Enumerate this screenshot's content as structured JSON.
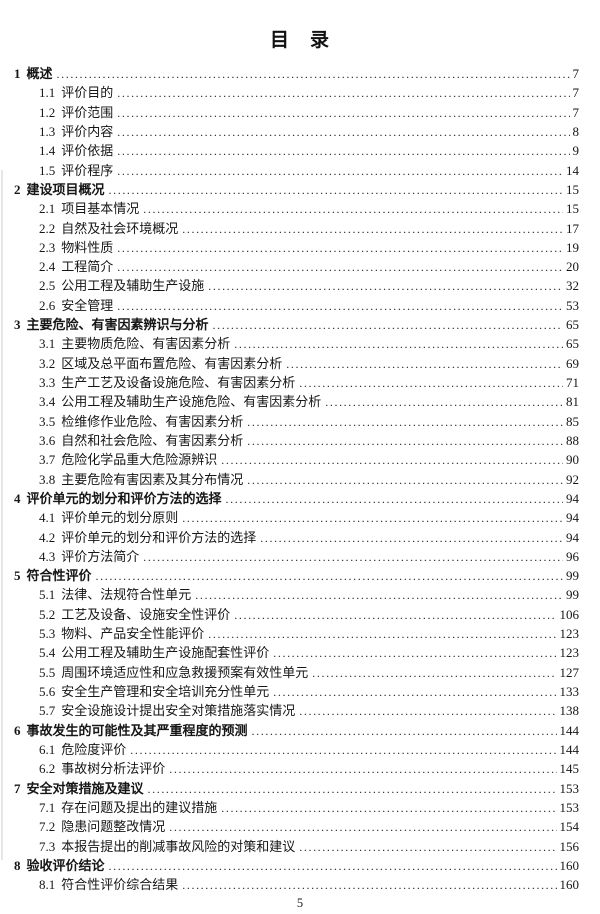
{
  "page": {
    "title": "目　录",
    "footer_page_number": "5"
  },
  "toc": {
    "entries": [
      {
        "level": 1,
        "number": "1",
        "title": "概述",
        "page": "7"
      },
      {
        "level": 2,
        "number": "1.1",
        "title": "评价目的",
        "page": "7"
      },
      {
        "level": 2,
        "number": "1.2",
        "title": "评价范围",
        "page": "7"
      },
      {
        "level": 2,
        "number": "1.3",
        "title": "评价内容",
        "page": "8"
      },
      {
        "level": 2,
        "number": "1.4",
        "title": "评价依据",
        "page": "9"
      },
      {
        "level": 2,
        "number": "1.5",
        "title": "评价程序",
        "page": "14"
      },
      {
        "level": 1,
        "number": "2",
        "title": "建设项目概况",
        "page": "15"
      },
      {
        "level": 2,
        "number": "2.1",
        "title": "项目基本情况",
        "page": "15"
      },
      {
        "level": 2,
        "number": "2.2",
        "title": "自然及社会环境概况",
        "page": "17"
      },
      {
        "level": 2,
        "number": "2.3",
        "title": "物料性质",
        "page": "19"
      },
      {
        "level": 2,
        "number": "2.4",
        "title": "工程简介",
        "page": "20"
      },
      {
        "level": 2,
        "number": "2.5",
        "title": "公用工程及辅助生产设施",
        "page": "32"
      },
      {
        "level": 2,
        "number": "2.6",
        "title": "安全管理",
        "page": "53"
      },
      {
        "level": 1,
        "number": "3",
        "title": "主要危险、有害因素辨识与分析",
        "page": "65"
      },
      {
        "level": 2,
        "number": "3.1",
        "title": "主要物质危险、有害因素分析",
        "page": "65"
      },
      {
        "level": 2,
        "number": "3.2",
        "title": "区域及总平面布置危险、有害因素分析",
        "page": "69"
      },
      {
        "level": 2,
        "number": "3.3",
        "title": "生产工艺及设备设施危险、有害因素分析",
        "page": "71"
      },
      {
        "level": 2,
        "number": "3.4",
        "title": "公用工程及辅助生产设施危险、有害因素分析",
        "page": "81"
      },
      {
        "level": 2,
        "number": "3.5",
        "title": "检维修作业危险、有害因素分析",
        "page": "85"
      },
      {
        "level": 2,
        "number": "3.6",
        "title": "自然和社会危险、有害因素分析",
        "page": "88"
      },
      {
        "level": 2,
        "number": "3.7",
        "title": "危险化学品重大危险源辨识",
        "page": "90"
      },
      {
        "level": 2,
        "number": "3.8",
        "title": "主要危险有害因素及其分布情况",
        "page": "92"
      },
      {
        "level": 1,
        "number": "4",
        "title": "评价单元的划分和评价方法的选择",
        "page": "94"
      },
      {
        "level": 2,
        "number": "4.1",
        "title": "评价单元的划分原则",
        "page": "94"
      },
      {
        "level": 2,
        "number": "4.2",
        "title": "评价单元的划分和评价方法的选择",
        "page": "94"
      },
      {
        "level": 2,
        "number": "4.3",
        "title": "评价方法简介",
        "page": "96"
      },
      {
        "level": 1,
        "number": "5",
        "title": "符合性评价",
        "page": "99"
      },
      {
        "level": 2,
        "number": "5.1",
        "title": "法律、法规符合性单元",
        "page": "99"
      },
      {
        "level": 2,
        "number": "5.2",
        "title": "工艺及设备、设施安全性评价",
        "page": "106"
      },
      {
        "level": 2,
        "number": "5.3",
        "title": "物料、产品安全性能评价",
        "page": "123"
      },
      {
        "level": 2,
        "number": "5.4",
        "title": "公用工程及辅助生产设施配套性评价",
        "page": "123"
      },
      {
        "level": 2,
        "number": "5.5",
        "title": "周围环境适应性和应急救援预案有效性单元",
        "page": "127"
      },
      {
        "level": 2,
        "number": "5.6",
        "title": "安全生产管理和安全培训充分性单元",
        "page": "133"
      },
      {
        "level": 2,
        "number": "5.7",
        "title": "安全设施设计提出安全对策措施落实情况",
        "page": "138"
      },
      {
        "level": 1,
        "number": "6",
        "title": "事故发生的可能性及其严重程度的预测",
        "page": "144"
      },
      {
        "level": 2,
        "number": "6.1",
        "title": "危险度评价",
        "page": "144"
      },
      {
        "level": 2,
        "number": "6.2",
        "title": "事故树分析法评价",
        "page": "145"
      },
      {
        "level": 1,
        "number": "7",
        "title": "安全对策措施及建议",
        "page": "153"
      },
      {
        "level": 2,
        "number": "7.1",
        "title": "存在问题及提出的建议措施",
        "page": "153"
      },
      {
        "level": 2,
        "number": "7.2",
        "title": "隐患问题整改情况",
        "page": "154"
      },
      {
        "level": 2,
        "number": "7.3",
        "title": "本报告提出的削减事故风险的对策和建议",
        "page": "156"
      },
      {
        "level": 1,
        "number": "8",
        "title": "验收评价结论",
        "page": "160"
      },
      {
        "level": 2,
        "number": "8.1",
        "title": "符合性评价综合结果",
        "page": "160"
      }
    ]
  }
}
